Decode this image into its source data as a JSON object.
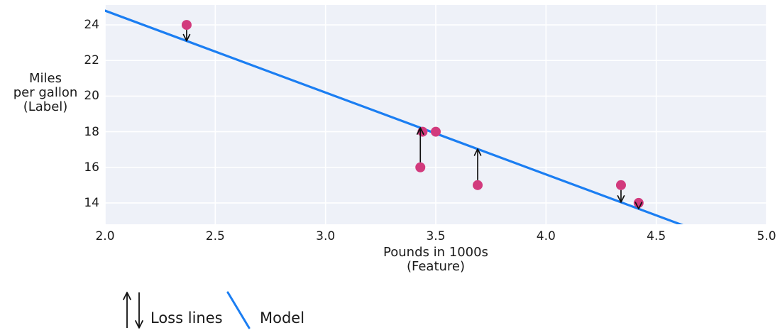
{
  "chart_data": {
    "type": "scatter",
    "title": "",
    "xlabel_lines": [
      "Pounds in 1000s",
      "(Feature)"
    ],
    "ylabel_lines": [
      "Miles",
      "per gallon",
      "(Label)"
    ],
    "x_ticks": [
      {
        "label": "2.0",
        "value": 2.0
      },
      {
        "label": "2.5",
        "value": 2.5
      },
      {
        "label": "3.0",
        "value": 3.0
      },
      {
        "label": "3.5",
        "value": 3.5
      },
      {
        "label": "4.0",
        "value": 4.0
      },
      {
        "label": "4.5",
        "value": 4.5
      },
      {
        "label": "5.0",
        "value": 5.0
      }
    ],
    "y_ticks": [
      {
        "label": "24",
        "value": 24
      },
      {
        "label": "22",
        "value": 22
      },
      {
        "label": "20",
        "value": 20
      },
      {
        "label": "18",
        "value": 18
      },
      {
        "label": "16",
        "value": 16
      },
      {
        "label": "14",
        "value": 14
      }
    ],
    "xlim": [
      2.0,
      5.0
    ],
    "ylim": [
      12.8,
      25.12
    ],
    "grid": true,
    "points": [
      {
        "x": 2.37,
        "y": 24
      },
      {
        "x": 3.5,
        "y": 18
      },
      {
        "x": 3.69,
        "y": 15
      },
      {
        "x": 3.44,
        "y": 18
      },
      {
        "x": 3.43,
        "y": 16
      },
      {
        "x": 4.34,
        "y": 15
      },
      {
        "x": 4.42,
        "y": 14
      }
    ],
    "model_line": {
      "slope": -4.6,
      "intercept": 34
    },
    "loss_lines": [
      {
        "x": 2.37,
        "y_from": 24,
        "y_to": 23.1
      },
      {
        "x": 3.43,
        "y_from": 16,
        "y_to": 18.22
      },
      {
        "x": 3.69,
        "y_from": 15,
        "y_to": 17.03
      },
      {
        "x": 4.34,
        "y_from": 15,
        "y_to": 14.04
      },
      {
        "x": 4.42,
        "y_from": 14,
        "y_to": 13.67
      }
    ],
    "colors": {
      "point": "#d23a7d",
      "model_line": "#1b7ef2",
      "plot_background": "#eef1f8",
      "gridline": "#ffffff",
      "arrow": "#111111",
      "text": "#1a1a1a"
    }
  },
  "legend": {
    "loss_label": "Loss lines",
    "model_label": "Model"
  }
}
